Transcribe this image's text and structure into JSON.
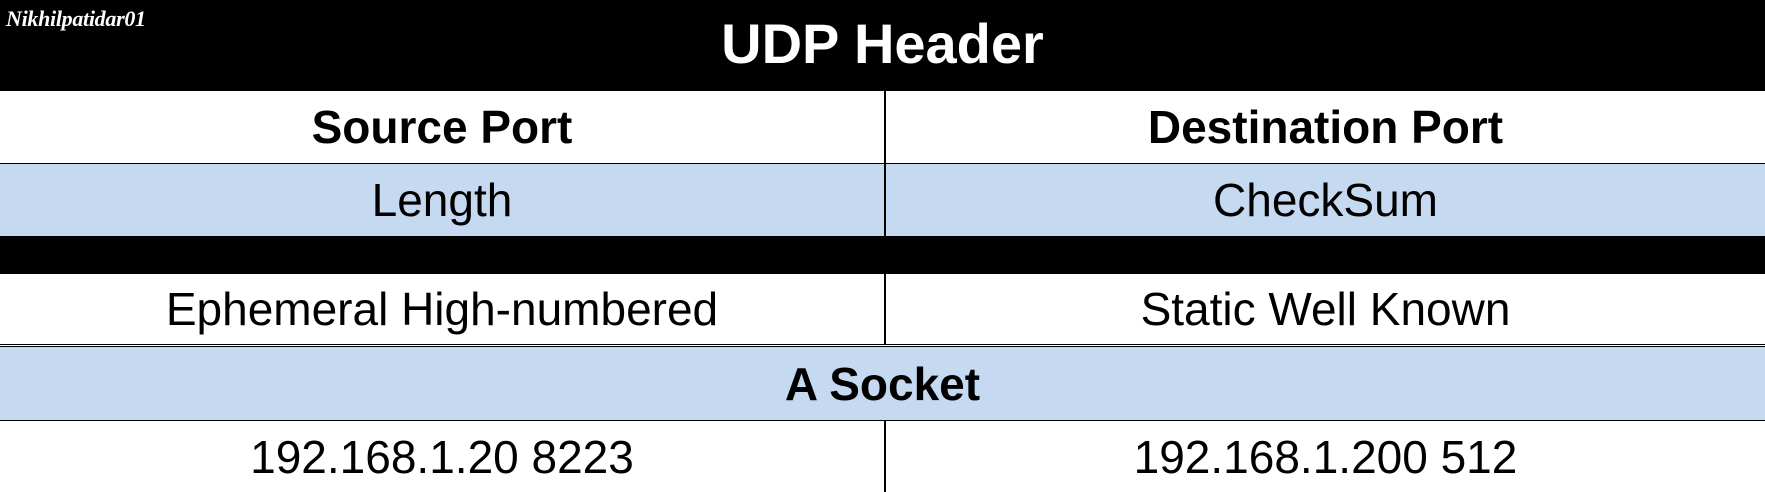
{
  "watermark": "Nikhilpatidar01",
  "title": "UDP Header",
  "header_fields": {
    "left": "Source Port",
    "right": "Destination Port"
  },
  "fields_row2": {
    "left": "Length",
    "right": "CheckSum"
  },
  "port_types": {
    "left": "Ephemeral High-numbered",
    "right": "Static Well Known"
  },
  "socket_title": "A Socket",
  "socket_values": {
    "left": "192.168.1.20 8223",
    "right": "192.168.1.200 512"
  },
  "colors": {
    "title_bar": "#000000",
    "title_text": "#ffffff",
    "highlight_row": "#c5d9f1",
    "separator_bar": "#000000",
    "text": "#000000"
  }
}
